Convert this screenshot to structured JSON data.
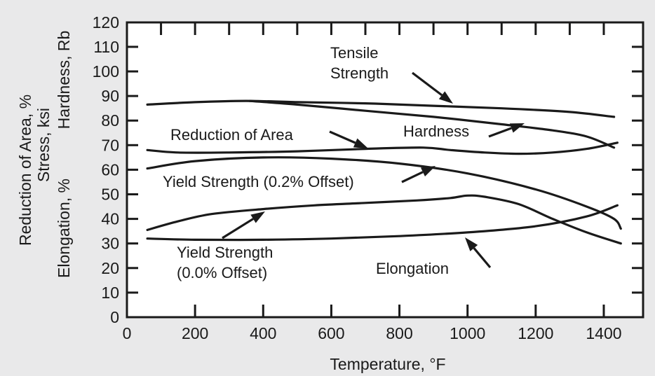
{
  "chart_data": {
    "type": "line",
    "title": "",
    "xlabel": "Temperature, °F",
    "ylabel_lines": [
      "Reduction of Area, %",
      "Stress, ksi",
      "Elongation, %"
    ],
    "ylabel_right": "Hardness, Rb",
    "xlim": [
      0,
      1500
    ],
    "ylim": [
      0,
      120
    ],
    "x_ticks": [
      0,
      200,
      400,
      600,
      800,
      1000,
      1200,
      1400
    ],
    "y_ticks": [
      0,
      10,
      20,
      30,
      40,
      50,
      60,
      70,
      80,
      90,
      100,
      110,
      120
    ],
    "grid": false,
    "legend": "none",
    "series": [
      {
        "name": "Tensile Strength",
        "x": [
          60,
          200,
          350,
          500,
          700,
          900,
          1100,
          1300,
          1430
        ],
        "y": [
          86.5,
          87.5,
          88,
          87.5,
          87,
          86,
          85,
          83.5,
          81.5
        ]
      },
      {
        "name": "Hardness",
        "x": [
          360,
          500,
          700,
          900,
          1100,
          1250,
          1350,
          1430
        ],
        "y": [
          88,
          86.5,
          84,
          81.5,
          78.5,
          76,
          73.5,
          69
        ]
      },
      {
        "name": "Reduction of Area",
        "x": [
          60,
          150,
          300,
          500,
          700,
          870,
          950,
          1050,
          1150,
          1250,
          1350,
          1440
        ],
        "y": [
          68,
          67,
          67,
          67.5,
          68.5,
          69,
          68,
          67,
          66.5,
          67,
          68.5,
          71
        ]
      },
      {
        "name": "Yield Strength (0.2% Offset)",
        "x": [
          60,
          200,
          400,
          600,
          800,
          1000,
          1200,
          1350,
          1430,
          1450
        ],
        "y": [
          60.5,
          63.5,
          65,
          64.5,
          62.5,
          58.5,
          52,
          45,
          40,
          36
        ]
      },
      {
        "name": "Yield Strength (0.0% Offset)",
        "x": [
          60,
          150,
          250,
          400,
          550,
          700,
          850,
          950,
          1000,
          1050,
          1150,
          1250,
          1350,
          1450
        ],
        "y": [
          35.5,
          39,
          42,
          44,
          45.5,
          46.5,
          47.5,
          48.5,
          49.5,
          49,
          46,
          40,
          34.5,
          30
        ]
      },
      {
        "name": "Elongation",
        "x": [
          60,
          200,
          400,
          600,
          800,
          1000,
          1200,
          1350,
          1440
        ],
        "y": [
          32,
          31.5,
          31.5,
          32,
          33,
          34.5,
          37,
          41,
          45.5
        ]
      }
    ],
    "annotations": [
      {
        "text": [
          "Tensile",
          "Strength"
        ],
        "for": "Tensile Strength"
      },
      {
        "text": [
          "Hardness"
        ],
        "for": "Hardness"
      },
      {
        "text": [
          "Reduction of Area"
        ],
        "for": "Reduction of Area"
      },
      {
        "text": [
          "Yield Strength (0.2% Offset)"
        ],
        "for": "Yield Strength (0.2% Offset)"
      },
      {
        "text": [
          "Yield Strength",
          "(0.0% Offset)"
        ],
        "for": "Yield Strength (0.0% Offset)"
      },
      {
        "text": [
          "Elongation"
        ],
        "for": "Elongation"
      }
    ]
  }
}
